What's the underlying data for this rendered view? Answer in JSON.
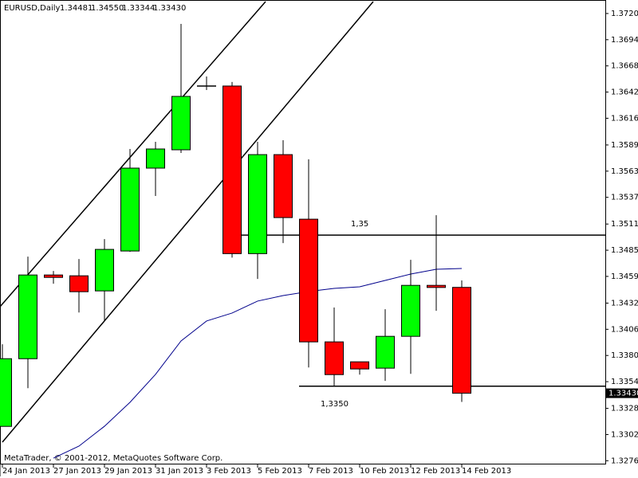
{
  "chart_data": {
    "type": "candlestick",
    "symbol": "EURUSD,Daily",
    "ohlc_header": [
      {
        "value": 1.34481,
        "label": "1.34481"
      },
      {
        "value": 1.3455,
        "label": "1.34550"
      },
      {
        "value": 1.33344,
        "label": "1.33344"
      },
      {
        "value": 1.3343,
        "label": "1.33430"
      }
    ],
    "categories": [
      "24 Jan 2013",
      null,
      "27 Jan 2013",
      null,
      "29 Jan 2013",
      null,
      "31 Jan 2013",
      null,
      "3 Feb 2013",
      null,
      "5 Feb 2013",
      null,
      "7 Feb 2013",
      null,
      "10 Feb 2013",
      null,
      "12 Feb 2013",
      null,
      "14 Feb 2013"
    ],
    "open": [
      1.33101,
      1.33773,
      1.34604,
      1.34596,
      1.34446,
      1.34842,
      1.35665,
      1.35847,
      1.3648,
      1.3648,
      1.34816,
      1.35799,
      1.35158,
      1.3394,
      1.33742,
      1.33679,
      1.33995,
      1.34501,
      1.34481
    ],
    "high": [
      1.33916,
      1.34786,
      1.34644,
      1.34763,
      1.3496,
      1.35855,
      1.35926,
      1.37097,
      1.36575,
      1.3652,
      1.35926,
      1.35942,
      1.35752,
      1.34281,
      1.33742,
      1.34264,
      1.34755,
      1.35198,
      1.3455
    ],
    "low": [
      1.33101,
      1.3348,
      1.34517,
      1.34232,
      1.34145,
      1.34834,
      1.35388,
      1.35815,
      1.3644,
      1.34776,
      1.34565,
      1.34921,
      1.33686,
      1.33504,
      1.33615,
      1.33552,
      1.33623,
      1.34248,
      1.33344
    ],
    "close": [
      1.33773,
      1.34604,
      1.3458,
      1.34438,
      1.34858,
      1.35665,
      1.35855,
      1.36377,
      1.3648,
      1.34816,
      1.35799,
      1.35174,
      1.3394,
      1.33615,
      1.33671,
      1.33995,
      1.34501,
      1.3448,
      1.3343
    ],
    "up_color": "#00ff00",
    "down_color": "#ff0000",
    "moving_average": {
      "color": "#00008b",
      "values": [
        null,
        null,
        1.32786,
        1.32905,
        1.33102,
        1.3334,
        1.33617,
        1.33949,
        1.34147,
        1.34226,
        1.34345,
        1.344,
        1.3444,
        1.34471,
        1.34487,
        1.3455,
        1.34613,
        1.34661,
        1.34669
      ]
    },
    "levels": [
      {
        "value": 1.35,
        "label": "1,35"
      },
      {
        "value": 1.335,
        "label": "1,3350"
      }
    ],
    "current_price": {
      "value": 1.3343,
      "label": "1.33430"
    },
    "ylim": [
      1.32723,
      1.37334
    ],
    "yticks": [
      {
        "value": 1.372,
        "label": "1.37200"
      },
      {
        "value": 1.3694,
        "label": "1.36940"
      },
      {
        "value": 1.3668,
        "label": "1.36680"
      },
      {
        "value": 1.3642,
        "label": "1.36420"
      },
      {
        "value": 1.3616,
        "label": "1.36160"
      },
      {
        "value": 1.35895,
        "label": "1.35895"
      },
      {
        "value": 1.35635,
        "label": "1.35635"
      },
      {
        "value": 1.35375,
        "label": "1.35375"
      },
      {
        "value": 1.3511,
        "label": "1.35110"
      },
      {
        "value": 1.3485,
        "label": "1.34850"
      },
      {
        "value": 1.3459,
        "label": "1.34590"
      },
      {
        "value": 1.34325,
        "label": "1.34325"
      },
      {
        "value": 1.34065,
        "label": "1.34065"
      },
      {
        "value": 1.33805,
        "label": "1.33805"
      },
      {
        "value": 1.33545,
        "label": "1.33545"
      },
      {
        "value": 1.3328,
        "label": "1.33280"
      },
      {
        "value": 1.3302,
        "label": "1.33020"
      },
      {
        "value": 1.3276,
        "label": "1.32760"
      }
    ],
    "copyright": "MetaTrader, © 2001-2012, MetaQuotes Software Corp."
  }
}
